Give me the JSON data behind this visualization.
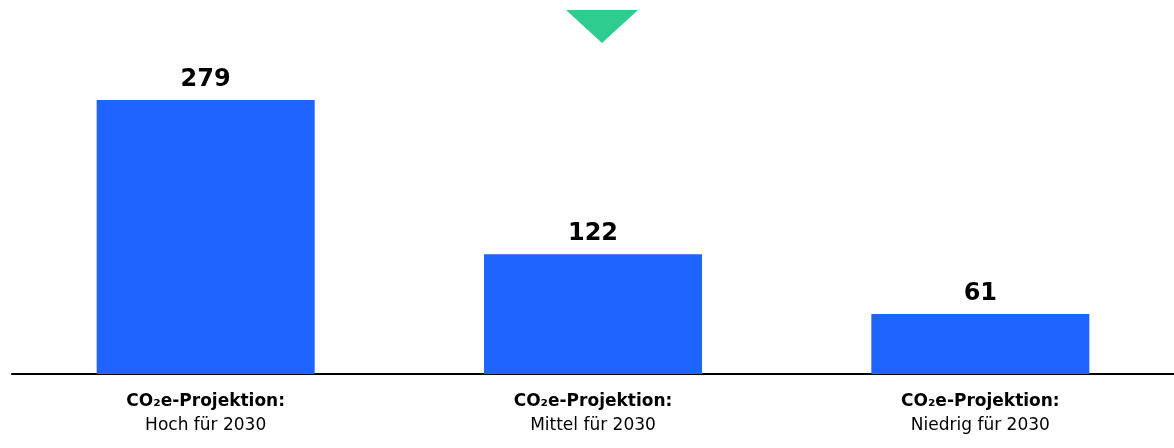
{
  "chart_data": {
    "type": "bar",
    "categories": [
      "CO₂e-Projektion:\nHoch für 2030",
      "CO₂e-Projektion:\nMittel für 2030",
      "CO₂e-Projektion:\nNiedrig für 2030"
    ],
    "values": [
      279,
      122,
      61
    ],
    "color": "#1f64ff",
    "data_labels": true
  }
}
